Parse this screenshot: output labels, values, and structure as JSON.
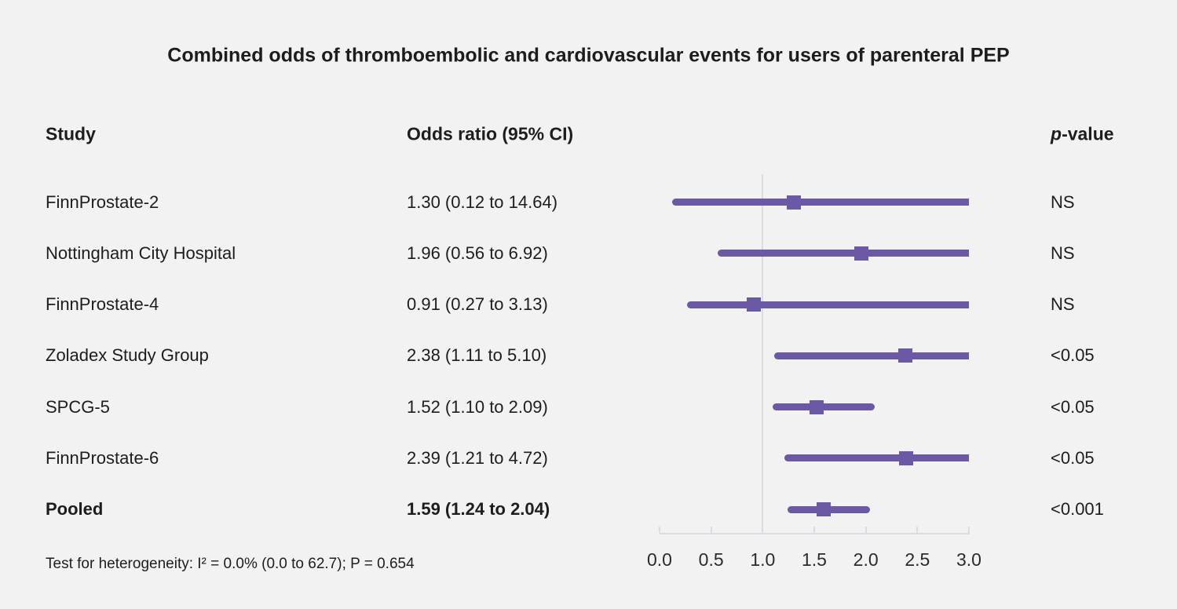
{
  "title": "Combined odds of thromboembolic and cardiovascular events for users of parenteral PEP",
  "columns": {
    "study": "Study",
    "odds_ratio": "Odds ratio (95% CI)",
    "p_italic": "p",
    "p_rest": "-value"
  },
  "footnote": "Test for heterogeneity: I² = 0.0% (0.0 to 62.7); P = 0.654",
  "colors": {
    "accent_purple": "#6b59a6",
    "axis_gray": "#d9dde3",
    "background": "#f2f2f2",
    "text": "#1d1d1b"
  },
  "chart_data": {
    "type": "forest",
    "title": "Combined odds of thromboembolic and cardiovascular events for users of parenteral PEP",
    "xlabel": "",
    "x_ticks": [
      "0.0",
      "0.5",
      "1.0",
      "1.5",
      "2.0",
      "2.5",
      "3.0"
    ],
    "xlim": [
      0.0,
      3.0
    ],
    "reference_line": 1.0,
    "rows": [
      {
        "study": "FinnProstate-2",
        "or": 1.3,
        "ci_low": 0.12,
        "ci_high": 14.64,
        "or_text": "1.30 (0.12 to 14.64)",
        "p": "NS",
        "bold": false
      },
      {
        "study": "Nottingham City Hospital",
        "or": 1.96,
        "ci_low": 0.56,
        "ci_high": 6.92,
        "or_text": "1.96 (0.56 to 6.92)",
        "p": "NS",
        "bold": false
      },
      {
        "study": "FinnProstate-4",
        "or": 0.91,
        "ci_low": 0.27,
        "ci_high": 3.13,
        "or_text": "0.91 (0.27 to 3.13)",
        "p": "NS",
        "bold": false
      },
      {
        "study": "Zoladex Study Group",
        "or": 2.38,
        "ci_low": 1.11,
        "ci_high": 5.1,
        "or_text": "2.38 (1.11 to 5.10)",
        "p": "<0.05",
        "bold": false
      },
      {
        "study": "SPCG-5",
        "or": 1.52,
        "ci_low": 1.1,
        "ci_high": 2.09,
        "or_text": "1.52 (1.10 to 2.09)",
        "p": "<0.05",
        "bold": false
      },
      {
        "study": "FinnProstate-6",
        "or": 2.39,
        "ci_low": 1.21,
        "ci_high": 4.72,
        "or_text": "2.39 (1.21 to 4.72)",
        "p": "<0.05",
        "bold": false
      },
      {
        "study": "Pooled",
        "or": 1.59,
        "ci_low": 1.24,
        "ci_high": 2.04,
        "or_text": "1.59 (1.24 to 2.04)",
        "p": "<0.001",
        "bold": true
      }
    ]
  }
}
